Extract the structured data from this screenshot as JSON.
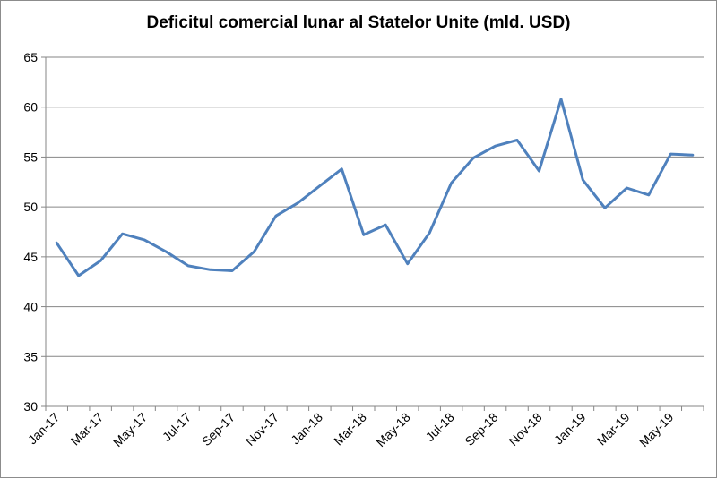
{
  "chart_data": {
    "type": "line",
    "title": "Deficitul comercial lunar al Statelor Unite (mld. USD)",
    "xlabel": "",
    "ylabel": "",
    "ylim": [
      30,
      65
    ],
    "y_ticks": [
      30,
      35,
      40,
      45,
      50,
      55,
      60,
      65
    ],
    "grid": true,
    "legend": "none",
    "categories": [
      "Jan-17",
      "Feb-17",
      "Mar-17",
      "Apr-17",
      "May-17",
      "Jun-17",
      "Jul-17",
      "Aug-17",
      "Sep-17",
      "Oct-17",
      "Nov-17",
      "Dec-17",
      "Jan-18",
      "Feb-18",
      "Mar-18",
      "Apr-18",
      "May-18",
      "Jun-18",
      "Jul-18",
      "Aug-18",
      "Sep-18",
      "Oct-18",
      "Nov-18",
      "Dec-18",
      "Jan-19",
      "Feb-19",
      "Mar-19",
      "Apr-19",
      "May-19",
      "Jun-19"
    ],
    "x_tick_labels": [
      "Jan-17",
      "Mar-17",
      "May-17",
      "Jul-17",
      "Sep-17",
      "Nov-17",
      "Jan-18",
      "Mar-18",
      "May-18",
      "Jul-18",
      "Sep-18",
      "Nov-18",
      "Jan-19",
      "Mar-19",
      "May-19"
    ],
    "series": [
      {
        "name": "",
        "color": "#4f81bd",
        "values": [
          46.4,
          43.1,
          44.6,
          47.3,
          46.7,
          45.5,
          44.1,
          43.7,
          43.6,
          45.5,
          49.1,
          50.4,
          52.1,
          53.8,
          47.2,
          48.2,
          44.3,
          47.4,
          52.4,
          54.9,
          56.1,
          56.7,
          53.6,
          60.8,
          52.7,
          49.9,
          51.9,
          51.2,
          55.3,
          55.2
        ]
      }
    ]
  }
}
